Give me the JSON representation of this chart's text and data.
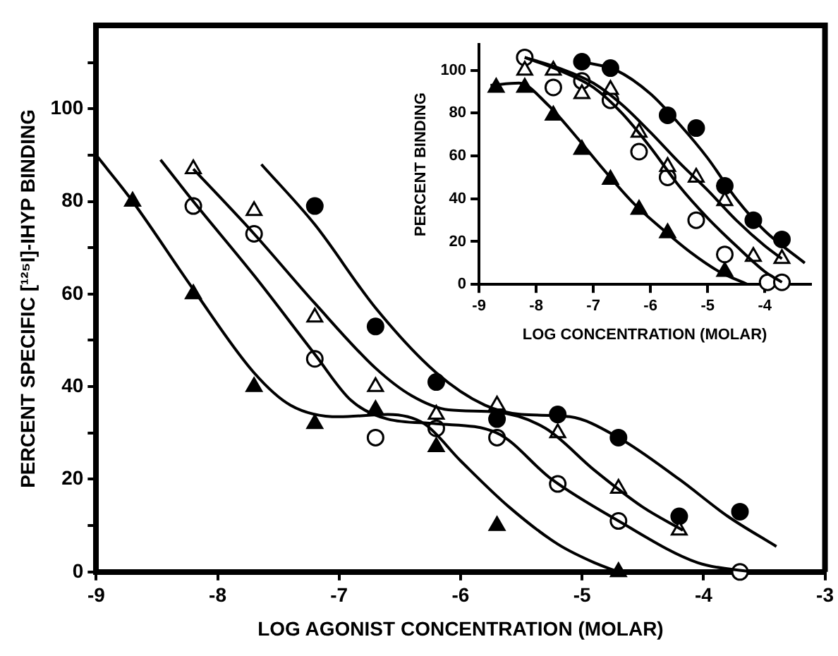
{
  "chart_data": [
    {
      "type": "scatter",
      "xlabel": "LOG AGONIST CONCENTRATION (MOLAR)",
      "ylabel": "PERCENT SPECIFIC [¹²⁵I]-IHYP BINDING",
      "xlim": [
        -9,
        -3
      ],
      "xticks": [
        -9,
        -8,
        -7,
        -6,
        -5,
        -4,
        -3
      ],
      "ylim": [
        0,
        118
      ],
      "yticks": [
        0,
        {
          "value": 10,
          "label": null
        },
        20,
        {
          "value": 30,
          "label": null
        },
        40,
        {
          "value": 50,
          "label": null
        },
        60,
        {
          "value": 70,
          "label": null
        },
        80,
        {
          "value": 90,
          "label": null
        },
        100,
        {
          "value": 110,
          "label": null
        }
      ],
      "grid": false,
      "legend": false,
      "series": [
        {
          "type": "scatter",
          "marker": "triangle",
          "color": "#000000",
          "x": [
            -8.7,
            -8.2,
            -7.7,
            -7.2,
            -6.7,
            -6.2,
            -5.7,
            -4.7
          ],
          "values": [
            80,
            60,
            40,
            32,
            35,
            27,
            10,
            0
          ]
        },
        {
          "type": "scatter",
          "marker": "circle",
          "color": "#ffffff",
          "x": [
            -8.2,
            -7.7,
            -7.2,
            -6.7,
            -6.2,
            -5.7,
            -5.2,
            -4.7,
            -3.7
          ],
          "values": [
            79,
            73,
            46,
            29,
            31,
            29,
            19,
            11,
            0
          ]
        },
        {
          "type": "scatter",
          "marker": "triangle",
          "color": "#ffffff",
          "x": [
            -8.2,
            -7.7,
            -7.2,
            -6.7,
            -6.2,
            -5.7,
            -5.2,
            -4.7,
            -4.2
          ],
          "values": [
            87,
            78,
            55,
            40,
            34,
            36,
            30,
            18,
            9
          ]
        },
        {
          "type": "scatter",
          "marker": "circle",
          "color": "#000000",
          "x": [
            -7.2,
            -6.7,
            -6.2,
            -5.7,
            -5.2,
            -4.7,
            -4.2,
            -3.7
          ],
          "values": [
            79,
            53,
            41,
            33,
            34,
            29,
            12,
            13
          ]
        },
        {
          "type": "line",
          "marker": "none",
          "color": "#000000",
          "x": [
            -9,
            -8.7,
            -8.2,
            -7.7,
            -7.4,
            -7.0,
            -6.6,
            -6.3,
            -6.0,
            -5.6,
            -5.2,
            -4.9,
            -4.7
          ],
          "values": [
            90,
            80,
            61,
            43,
            36,
            33.5,
            34,
            32,
            24,
            14,
            6,
            2,
            0
          ]
        },
        {
          "type": "line",
          "marker": "none",
          "color": "#000000",
          "x": [
            -8.47,
            -8.2,
            -7.7,
            -7.2,
            -6.9,
            -6.6,
            -6.2,
            -5.7,
            -5.25,
            -4.7,
            -4.05,
            -3.6
          ],
          "values": [
            89,
            80,
            64,
            47,
            37,
            33,
            32,
            30,
            20,
            11,
            2,
            0
          ]
        },
        {
          "type": "line",
          "marker": "none",
          "color": "#000000",
          "x": [
            -8.2,
            -7.7,
            -7.2,
            -6.7,
            -6.4,
            -6.1,
            -5.7,
            -5.3,
            -4.9,
            -4.5,
            -4.17
          ],
          "values": [
            87,
            73,
            58,
            44,
            38,
            35,
            34.5,
            31,
            22,
            14,
            9
          ]
        },
        {
          "type": "line",
          "marker": "none",
          "color": "#000000",
          "x": [
            -7.64,
            -7.2,
            -6.7,
            -6.2,
            -5.8,
            -5.5,
            -5.1,
            -4.7,
            -4.2,
            -3.8,
            -3.4
          ],
          "values": [
            88,
            75,
            57,
            43,
            36,
            34,
            33.5,
            29,
            20,
            12,
            5.5
          ]
        }
      ]
    },
    {
      "type": "scatter",
      "xlabel": "LOG CONCENTRATION (MOLAR)",
      "ylabel": "PERCENT BINDING",
      "xlim": [
        -9,
        -3.2
      ],
      "xticks": [
        -9,
        -8,
        -7,
        -6,
        -5,
        -4
      ],
      "ylim": [
        0,
        112
      ],
      "yticks": [
        0,
        20,
        40,
        60,
        80,
        100
      ],
      "grid": false,
      "legend": false,
      "series": [
        {
          "type": "scatter",
          "marker": "circle",
          "color": "#000000",
          "x": [
            -7.2,
            -6.7,
            -5.7,
            -5.2,
            -4.7,
            -4.2,
            -3.7
          ],
          "values": [
            104,
            101,
            79,
            73,
            46,
            30,
            21
          ]
        },
        {
          "type": "scatter",
          "marker": "triangle",
          "color": "#ffffff",
          "x": [
            -8.2,
            -7.7,
            -7.2,
            -6.7,
            -6.2,
            -5.7,
            -5.2,
            -4.7,
            -4.2,
            -3.7
          ],
          "values": [
            100,
            100,
            89,
            91,
            71,
            55,
            50,
            39,
            13,
            12
          ]
        },
        {
          "type": "scatter",
          "marker": "circle",
          "color": "#ffffff",
          "x": [
            -8.2,
            -7.7,
            -7.2,
            -6.7,
            -6.2,
            -5.7,
            -5.2,
            -4.7,
            -3.95,
            -3.7
          ],
          "values": [
            106,
            92,
            95,
            86,
            62,
            50,
            30,
            14,
            1,
            1
          ]
        },
        {
          "type": "scatter",
          "marker": "triangle",
          "color": "#000000",
          "x": [
            -8.7,
            -8.2,
            -7.7,
            -7.2,
            -6.7,
            -6.2,
            -5.7,
            -4.7
          ],
          "values": [
            92,
            92,
            79,
            63,
            49,
            35,
            24,
            6
          ]
        },
        {
          "type": "line",
          "marker": "none",
          "color": "#000000",
          "x": [
            -7.2,
            -6.6,
            -6.0,
            -5.5,
            -5.0,
            -4.5,
            -4.0,
            -3.3
          ],
          "values": [
            104,
            100,
            89,
            75,
            59,
            40,
            25,
            10
          ]
        },
        {
          "type": "line",
          "marker": "none",
          "color": "#000000",
          "x": [
            -8.2,
            -7.6,
            -7.0,
            -6.5,
            -6.0,
            -5.5,
            -5.0,
            -4.5,
            -4.0,
            -3.7
          ],
          "values": [
            106,
            101,
            94,
            84,
            71,
            57,
            44,
            30,
            18,
            12
          ]
        },
        {
          "type": "line",
          "marker": "none",
          "color": "#000000",
          "x": [
            -8.2,
            -7.6,
            -7.0,
            -6.5,
            -6.0,
            -5.5,
            -5.0,
            -4.5,
            -4.0,
            -3.7
          ],
          "values": [
            106,
            100,
            92,
            80,
            64,
            46,
            31,
            18,
            6,
            1
          ]
        },
        {
          "type": "line",
          "marker": "none",
          "color": "#000000",
          "x": [
            -8.8,
            -8.3,
            -7.8,
            -7.3,
            -6.8,
            -6.3,
            -5.8,
            -5.3,
            -4.8,
            -4.3
          ],
          "values": [
            93,
            94,
            84,
            69,
            53,
            38,
            26,
            15,
            6,
            0
          ]
        }
      ]
    }
  ]
}
